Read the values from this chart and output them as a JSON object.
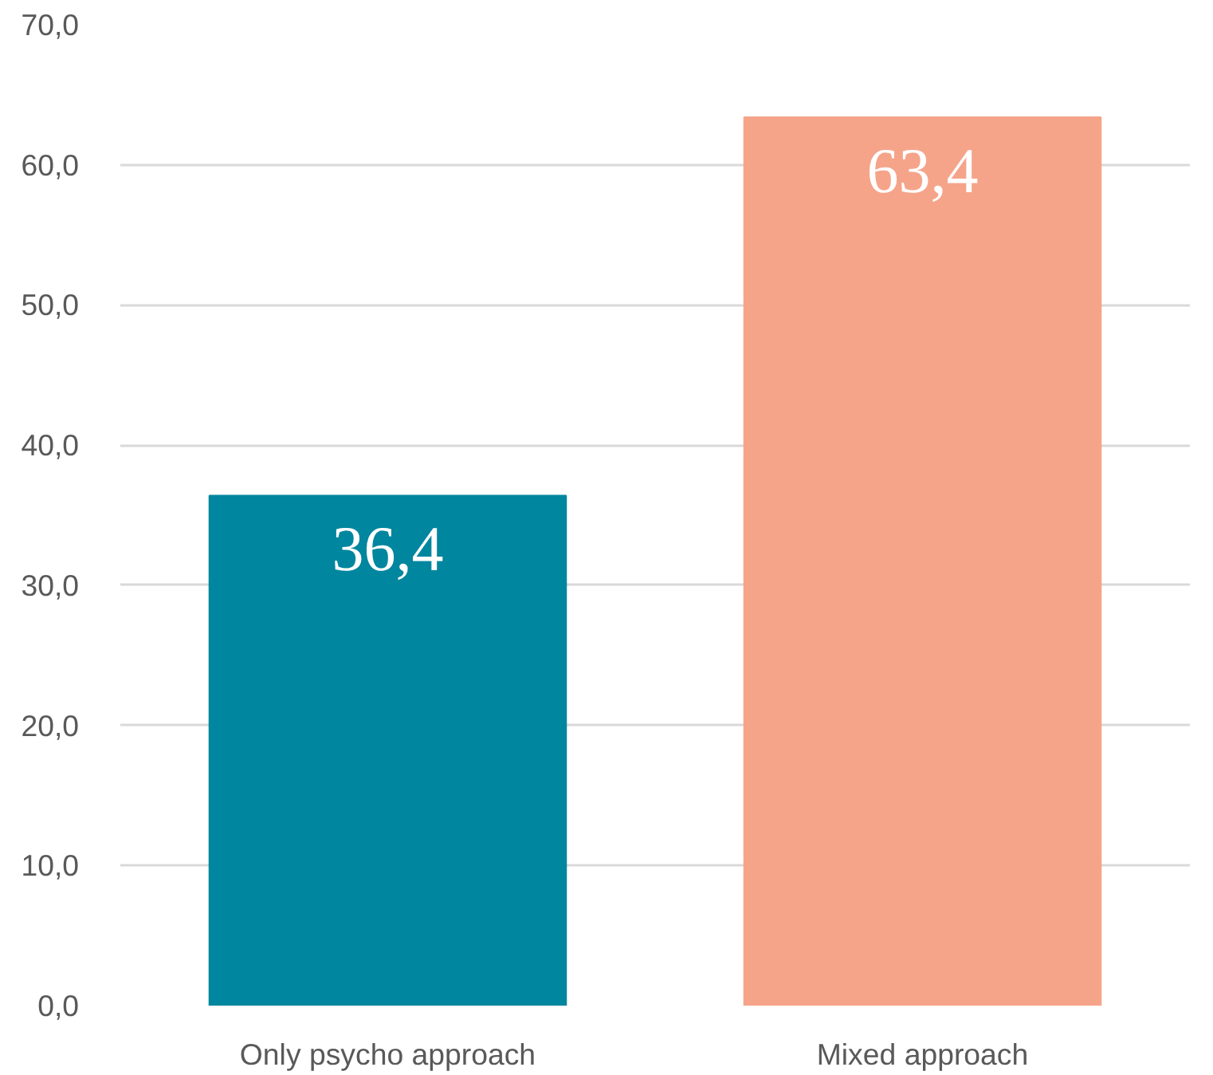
{
  "chart_data": {
    "type": "bar",
    "categories": [
      "Only psycho approach",
      "Mixed approach"
    ],
    "values": [
      36.4,
      63.4
    ],
    "colors": [
      "#00869e",
      "#f5a48a"
    ],
    "value_labels": [
      "36,4",
      "63,4"
    ],
    "ylim": [
      0,
      70
    ],
    "yticks": [
      {
        "value": 0,
        "label": "0,0"
      },
      {
        "value": 10,
        "label": "10,0"
      },
      {
        "value": 20,
        "label": "20,0"
      },
      {
        "value": 30,
        "label": "30,0"
      },
      {
        "value": 40,
        "label": "40,0"
      },
      {
        "value": 50,
        "label": "50,0"
      },
      {
        "value": 60,
        "label": "60,0"
      },
      {
        "value": 70,
        "label": "70,0"
      }
    ],
    "grid": "y"
  }
}
